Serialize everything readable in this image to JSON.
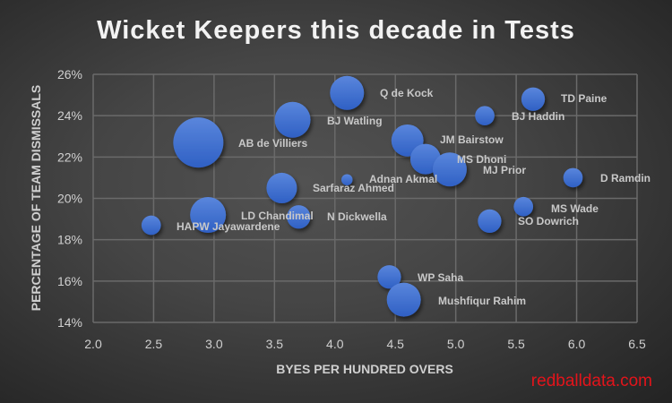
{
  "chart_data": {
    "type": "bubble",
    "title": "Wicket Keepers this decade in Tests",
    "xlabel": "BYES PER HUNDRED OVERS",
    "ylabel": "PERCENTAGE OF TEAM DISMISSALS",
    "xlim": [
      2.0,
      6.5
    ],
    "ylim": [
      14,
      26
    ],
    "xticks": [
      "2.0",
      "2.5",
      "3.0",
      "3.5",
      "4.0",
      "4.5",
      "5.0",
      "5.5",
      "6.0",
      "6.5"
    ],
    "yticks": [
      "14%",
      "16%",
      "18%",
      "20%",
      "22%",
      "24%",
      "26%"
    ],
    "grid": true,
    "points": [
      {
        "name": "Q de Kock",
        "x": 4.1,
        "y": 25.1,
        "size": 46
      },
      {
        "name": "BJ Watling",
        "x": 3.65,
        "y": 23.8,
        "size": 51
      },
      {
        "name": "AB de Villiers",
        "x": 2.87,
        "y": 22.7,
        "size": 100
      },
      {
        "name": "JM Bairstow",
        "x": 4.6,
        "y": 22.8,
        "size": 41
      },
      {
        "name": "MS Dhoni",
        "x": 4.75,
        "y": 21.9,
        "size": 37
      },
      {
        "name": "MJ Prior",
        "x": 4.95,
        "y": 21.4,
        "size": 46
      },
      {
        "name": "Adnan Akmal",
        "x": 4.1,
        "y": 20.9,
        "size": 5
      },
      {
        "name": "Sarfaraz Ahmed",
        "x": 3.56,
        "y": 20.5,
        "size": 37
      },
      {
        "name": "LD Chandimal",
        "x": 2.95,
        "y": 19.2,
        "size": 51
      },
      {
        "name": "N Dickwella",
        "x": 3.7,
        "y": 19.1,
        "size": 22
      },
      {
        "name": "HAPW Jayawardene",
        "x": 2.48,
        "y": 18.7,
        "size": 15
      },
      {
        "name": "TD Paine",
        "x": 5.64,
        "y": 24.8,
        "size": 22
      },
      {
        "name": "BJ Haddin",
        "x": 5.24,
        "y": 24.0,
        "size": 15
      },
      {
        "name": "D Ramdin",
        "x": 5.97,
        "y": 21.0,
        "size": 15
      },
      {
        "name": "MS Wade",
        "x": 5.56,
        "y": 19.6,
        "size": 15
      },
      {
        "name": "SO Dowrich",
        "x": 5.28,
        "y": 18.9,
        "size": 22
      },
      {
        "name": "WP Saha",
        "x": 4.45,
        "y": 16.2,
        "size": 22
      },
      {
        "name": "Mushfiqur Rahim",
        "x": 4.57,
        "y": 15.1,
        "size": 46
      }
    ],
    "bubble_color": "#3b6fd4"
  },
  "watermark": "redballdata.com"
}
